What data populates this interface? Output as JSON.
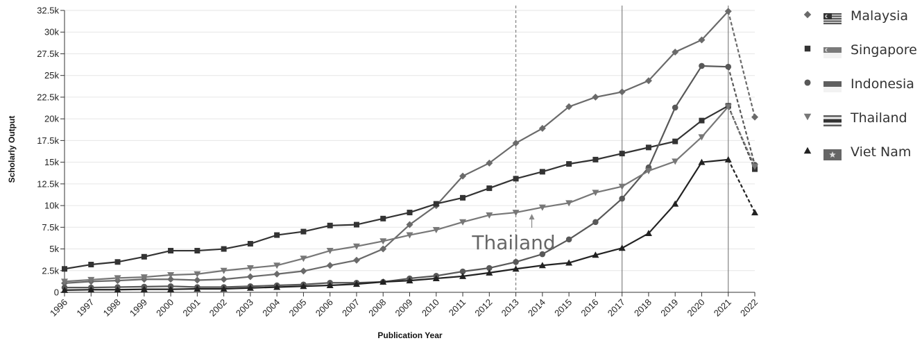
{
  "chart_data": {
    "type": "line",
    "xlabel": "Publication Year",
    "ylabel": "Scholarly Output",
    "ylim": [
      0,
      32500
    ],
    "yticks": [
      0,
      2500,
      5000,
      7500,
      10000,
      12500,
      15000,
      17500,
      20000,
      22500,
      25000,
      27500,
      30000,
      32500
    ],
    "ytick_labels": [
      "0",
      "2.5k",
      "5k",
      "7.5k",
      "10k",
      "12.5k",
      "15k",
      "17.5k",
      "20k",
      "22.5k",
      "25k",
      "27.5k",
      "30k",
      "32.5k"
    ],
    "x": [
      "1996",
      "1997",
      "1998",
      "1999",
      "2000",
      "2001",
      "2002",
      "2003",
      "2004",
      "2005",
      "2006",
      "2007",
      "2008",
      "2009",
      "2010",
      "2011",
      "2012",
      "2013",
      "2014",
      "2015",
      "2016",
      "2017",
      "2018",
      "2019",
      "2020",
      "2021",
      "2022"
    ],
    "grid": true,
    "legend_position": "right",
    "series": [
      {
        "name": "Malaysia",
        "marker": "diamond",
        "color": "#6a6a6a",
        "values": [
          1050,
          1250,
          1350,
          1500,
          1500,
          1400,
          1500,
          1800,
          2100,
          2450,
          3100,
          3700,
          5000,
          7800,
          10000,
          13400,
          14900,
          17200,
          18900,
          21400,
          22500,
          23100,
          24400,
          27700,
          29100,
          32400,
          20200
        ]
      },
      {
        "name": "Singapore",
        "marker": "square",
        "color": "#333333",
        "values": [
          2700,
          3200,
          3500,
          4100,
          4800,
          4800,
          5000,
          5600,
          6600,
          7000,
          7700,
          7800,
          8500,
          9200,
          10200,
          10900,
          12000,
          13100,
          13900,
          14800,
          15300,
          16000,
          16700,
          17400,
          19800,
          21500,
          14200
        ]
      },
      {
        "name": "Indonesia",
        "marker": "circle",
        "color": "#585858",
        "values": [
          550,
          550,
          600,
          650,
          700,
          600,
          600,
          700,
          800,
          900,
          1100,
          1100,
          1200,
          1600,
          1900,
          2400,
          2800,
          3500,
          4400,
          6100,
          8100,
          10800,
          14400,
          21300,
          26100,
          26000,
          14700
        ]
      },
      {
        "name": "Thailand",
        "marker": "triangle-down",
        "color": "#777777",
        "values": [
          1250,
          1450,
          1650,
          1750,
          2000,
          2100,
          2500,
          2800,
          3100,
          3900,
          4800,
          5300,
          5900,
          6600,
          7200,
          8100,
          8900,
          9200,
          9800,
          10300,
          11500,
          12200,
          14000,
          15100,
          17900,
          21400,
          14500
        ]
      },
      {
        "name": "Viet Nam",
        "marker": "triangle-up",
        "color": "#222222",
        "values": [
          250,
          300,
          300,
          350,
          350,
          400,
          400,
          500,
          600,
          700,
          800,
          950,
          1200,
          1350,
          1600,
          1850,
          2250,
          2700,
          3100,
          3400,
          4300,
          5100,
          6800,
          10200,
          15000,
          15300,
          9200
        ]
      }
    ],
    "vertical_lines": [
      {
        "x": "2013",
        "style": "dashed"
      },
      {
        "x": "2017",
        "style": "solid"
      },
      {
        "x": "2021",
        "style": "solid"
      }
    ],
    "annotations": [
      {
        "text": "Thailand",
        "x": "2013.6",
        "y": 9200
      }
    ],
    "projection_segment": {
      "from": "2021",
      "to": "2022",
      "style": "dashed"
    }
  }
}
